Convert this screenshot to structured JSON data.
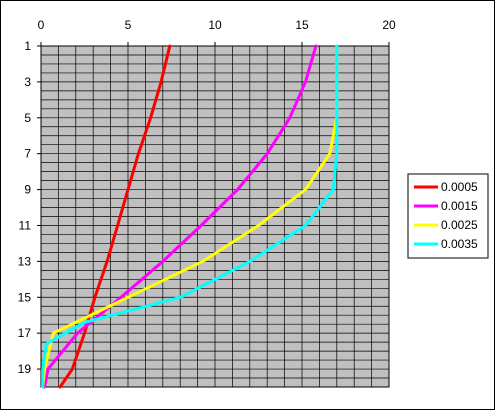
{
  "chart_data": {
    "type": "line",
    "title": "",
    "xlabel": "",
    "ylabel": "",
    "x_axis_position": "top",
    "y_axis_inverted": true,
    "xlim": [
      0,
      20
    ],
    "ylim": [
      1,
      20
    ],
    "x_ticks": [
      "0",
      "5",
      "10",
      "15",
      "20"
    ],
    "y_ticks": [
      "1",
      "3",
      "5",
      "7",
      "9",
      "11",
      "13",
      "15",
      "17",
      "19"
    ],
    "grid": true,
    "plot_background": "#c0c0c0",
    "legend_position": "right",
    "series": [
      {
        "name": "0.0005",
        "color": "#ff0000",
        "points": [
          [
            7.4,
            1
          ],
          [
            6.9,
            3
          ],
          [
            6.3,
            5
          ],
          [
            5.6,
            7
          ],
          [
            5.0,
            9
          ],
          [
            4.4,
            11
          ],
          [
            3.8,
            13
          ],
          [
            3.1,
            15
          ],
          [
            2.5,
            17
          ],
          [
            1.8,
            19
          ],
          [
            1.1,
            20
          ]
        ]
      },
      {
        "name": "0.0015",
        "color": "#ff00ff",
        "points": [
          [
            15.8,
            1
          ],
          [
            15.2,
            3
          ],
          [
            14.3,
            5
          ],
          [
            13.0,
            7
          ],
          [
            11.3,
            9
          ],
          [
            9.2,
            11
          ],
          [
            7.0,
            13
          ],
          [
            4.6,
            15
          ],
          [
            2.1,
            17
          ],
          [
            0.4,
            19
          ],
          [
            0.2,
            20
          ]
        ]
      },
      {
        "name": "0.0025",
        "color": "#ffff00",
        "points": [
          [
            17.0,
            1
          ],
          [
            17.0,
            3
          ],
          [
            17.0,
            5
          ],
          [
            16.6,
            7
          ],
          [
            15.2,
            9
          ],
          [
            12.5,
            11
          ],
          [
            9.3,
            13
          ],
          [
            5.0,
            15
          ],
          [
            0.7,
            17
          ],
          [
            0.2,
            19
          ],
          [
            0.1,
            20
          ]
        ]
      },
      {
        "name": "0.0035",
        "color": "#00ffff",
        "points": [
          [
            17.0,
            1
          ],
          [
            17.0,
            3
          ],
          [
            17.0,
            5
          ],
          [
            17.0,
            7
          ],
          [
            16.8,
            9
          ],
          [
            15.2,
            11
          ],
          [
            12.0,
            13
          ],
          [
            8.0,
            15
          ],
          [
            2.5,
            16.4
          ],
          [
            0.3,
            17.6
          ],
          [
            0.1,
            19
          ],
          [
            0.1,
            20
          ]
        ]
      }
    ]
  }
}
